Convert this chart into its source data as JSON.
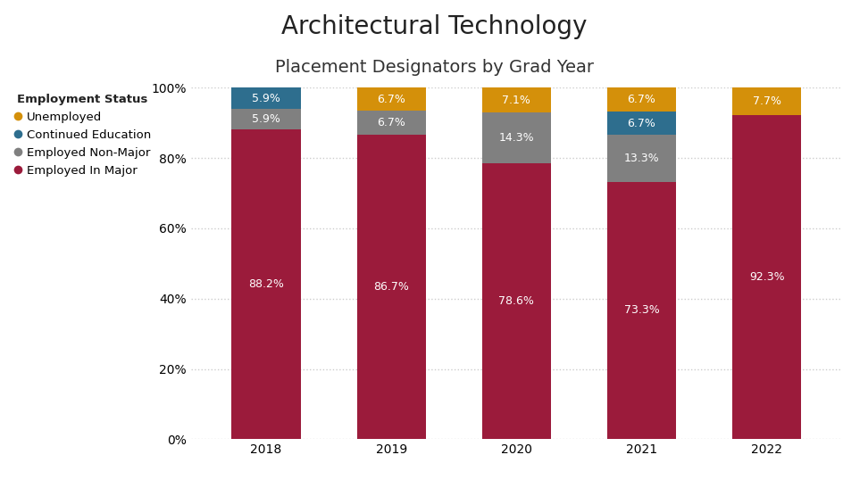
{
  "title": "Architectural Technology",
  "subtitle": "Placement Designators by Grad Year",
  "years": [
    "2018",
    "2019",
    "2020",
    "2021",
    "2022"
  ],
  "colors": {
    "Employed In Major": "#9B1B3B",
    "Employed Non-Major": "#808080",
    "Continued Education": "#2E6E8E",
    "Unemployed": "#D4900A"
  },
  "data": {
    "Employed In Major": [
      88.2,
      86.7,
      78.6,
      73.3,
      92.3
    ],
    "Employed Non-Major": [
      5.9,
      6.7,
      14.3,
      13.3,
      0.0
    ],
    "Continued Education": [
      5.9,
      0.0,
      0.0,
      6.7,
      0.0
    ],
    "Unemployed": [
      0.0,
      6.7,
      7.1,
      6.7,
      7.7
    ]
  },
  "labels": {
    "Employed In Major": [
      "88.2%",
      "86.7%",
      "78.6%",
      "73.3%",
      "92.3%"
    ],
    "Employed Non-Major": [
      "5.9%",
      "6.7%",
      "14.3%",
      "13.3%",
      ""
    ],
    "Continued Education": [
      "5.9%",
      "",
      "",
      "6.7%",
      ""
    ],
    "Unemployed": [
      "",
      "6.7%",
      "7.1%",
      "6.7%",
      "7.7%"
    ]
  },
  "legend_title": "Employment Status",
  "legend_order": [
    "Unemployed",
    "Continued Education",
    "Employed Non-Major",
    "Employed In Major"
  ],
  "ylim": [
    0,
    100
  ],
  "yticks": [
    0,
    20,
    40,
    60,
    80,
    100
  ],
  "ytick_labels": [
    "0%",
    "20%",
    "40%",
    "60%",
    "80%",
    "100%"
  ],
  "background_color": "#FFFFFF",
  "grid_color": "#CCCCCC",
  "title_fontsize": 20,
  "subtitle_fontsize": 14,
  "label_fontsize": 9,
  "legend_fontsize": 9.5,
  "tick_fontsize": 10
}
